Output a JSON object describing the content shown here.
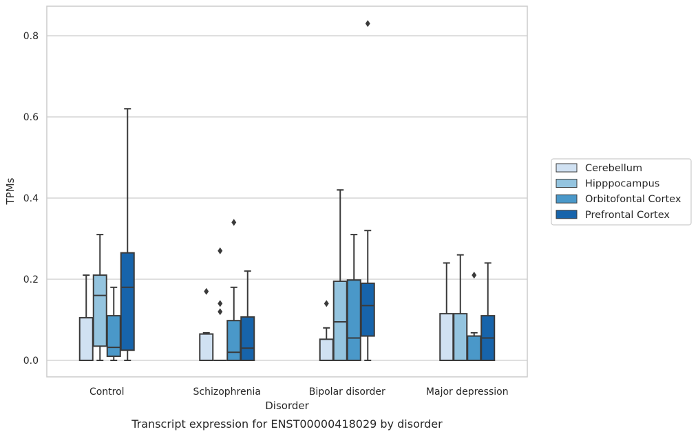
{
  "chart_data": {
    "type": "boxplot",
    "caption": "Transcript expression for ENST00000418029 by disorder",
    "xlabel": "Disorder",
    "ylabel": "TPMs",
    "ylim": [
      -0.04,
      0.875
    ],
    "yticks": [
      0.0,
      0.2,
      0.4,
      0.6,
      0.8
    ],
    "ytick_labels": [
      "0.0",
      "0.2",
      "0.4",
      "0.6",
      "0.8"
    ],
    "grid": "horizontal",
    "legend_position": "right",
    "categories": [
      "Control",
      "Schizophrenia",
      "Bipolar disorder",
      "Major depression"
    ],
    "series": [
      {
        "name": "Cerebellum",
        "color": "#d0e1f2",
        "boxes": [
          {
            "whislo": 0.0,
            "q1": 0.0,
            "med": 0.0,
            "q3": 0.105,
            "whishi": 0.21,
            "fliers": []
          },
          {
            "whislo": 0.0,
            "q1": 0.0,
            "med": 0.0,
            "q3": 0.065,
            "whishi": 0.068,
            "fliers": [
              0.17
            ]
          },
          {
            "whislo": 0.0,
            "q1": 0.0,
            "med": 0.0,
            "q3": 0.052,
            "whishi": 0.08,
            "fliers": [
              0.14
            ]
          },
          {
            "whislo": 0.0,
            "q1": 0.0,
            "med": 0.0,
            "q3": 0.115,
            "whishi": 0.24,
            "fliers": []
          }
        ]
      },
      {
        "name": "Hipppocampus",
        "color": "#94c4df",
        "boxes": [
          {
            "whislo": 0.0,
            "q1": 0.035,
            "med": 0.16,
            "q3": 0.21,
            "whishi": 0.31,
            "fliers": []
          },
          {
            "whislo": 0.0,
            "q1": 0.0,
            "med": 0.0,
            "q3": 0.0,
            "whishi": 0.0,
            "fliers": [
              0.12,
              0.14,
              0.27
            ]
          },
          {
            "whislo": 0.0,
            "q1": 0.0,
            "med": 0.095,
            "q3": 0.195,
            "whishi": 0.42,
            "fliers": []
          },
          {
            "whislo": 0.0,
            "q1": 0.0,
            "med": 0.0,
            "q3": 0.115,
            "whishi": 0.26,
            "fliers": []
          }
        ]
      },
      {
        "name": "Orbitofontal Cortex",
        "color": "#4a98c9",
        "boxes": [
          {
            "whislo": 0.0,
            "q1": 0.01,
            "med": 0.032,
            "q3": 0.11,
            "whishi": 0.18,
            "fliers": []
          },
          {
            "whislo": 0.0,
            "q1": 0.0,
            "med": 0.02,
            "q3": 0.098,
            "whishi": 0.18,
            "fliers": [
              0.34
            ]
          },
          {
            "whislo": 0.0,
            "q1": 0.0,
            "med": 0.055,
            "q3": 0.198,
            "whishi": 0.31,
            "fliers": []
          },
          {
            "whislo": 0.0,
            "q1": 0.0,
            "med": 0.0,
            "q3": 0.06,
            "whishi": 0.068,
            "fliers": [
              0.21
            ]
          }
        ]
      },
      {
        "name": "Prefrontal Cortex",
        "color": "#1764ab",
        "boxes": [
          {
            "whislo": 0.0,
            "q1": 0.025,
            "med": 0.18,
            "q3": 0.265,
            "whishi": 0.62,
            "fliers": []
          },
          {
            "whislo": 0.0,
            "q1": 0.0,
            "med": 0.03,
            "q3": 0.107,
            "whishi": 0.22,
            "fliers": []
          },
          {
            "whislo": 0.0,
            "q1": 0.06,
            "med": 0.135,
            "q3": 0.19,
            "whishi": 0.32,
            "fliers": [
              0.83
            ]
          },
          {
            "whislo": 0.0,
            "q1": 0.0,
            "med": 0.055,
            "q3": 0.11,
            "whishi": 0.24,
            "fliers": []
          }
        ]
      }
    ]
  }
}
